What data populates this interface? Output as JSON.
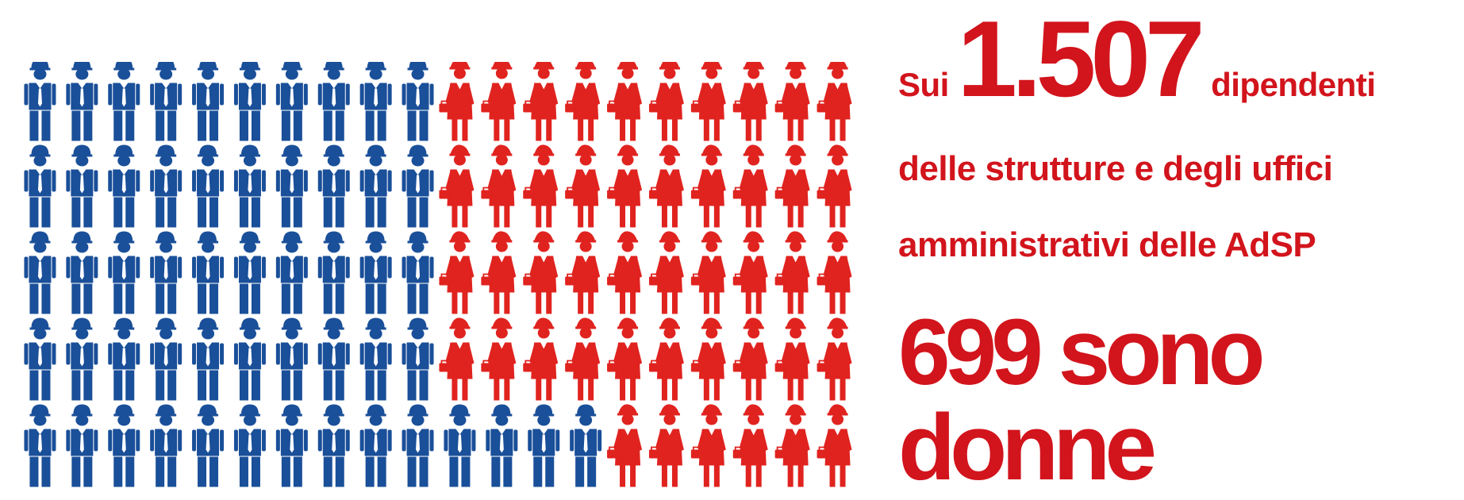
{
  "infographic": {
    "intro_prefix": "Sui",
    "total_count": "1.507",
    "intro_suffix": "dipendenti",
    "subtitle_line1": "delle strutture e degli uffici",
    "subtitle_line2": "amministrativi delle AdSP",
    "highlight_line1": "699 sono",
    "highlight_line2": "donne"
  },
  "pictogram": {
    "rows": 5,
    "columns": 20,
    "row_counts": [
      {
        "men": 10,
        "women": 10
      },
      {
        "men": 10,
        "women": 10
      },
      {
        "men": 10,
        "women": 10
      },
      {
        "men": 10,
        "women": 10
      },
      {
        "men": 14,
        "women": 6
      }
    ],
    "male_icon": "male-worker-icon",
    "female_icon": "female-worker-icon"
  },
  "colors": {
    "male": "#1a4f99",
    "female": "#e0231f",
    "text": "#d2141c"
  }
}
